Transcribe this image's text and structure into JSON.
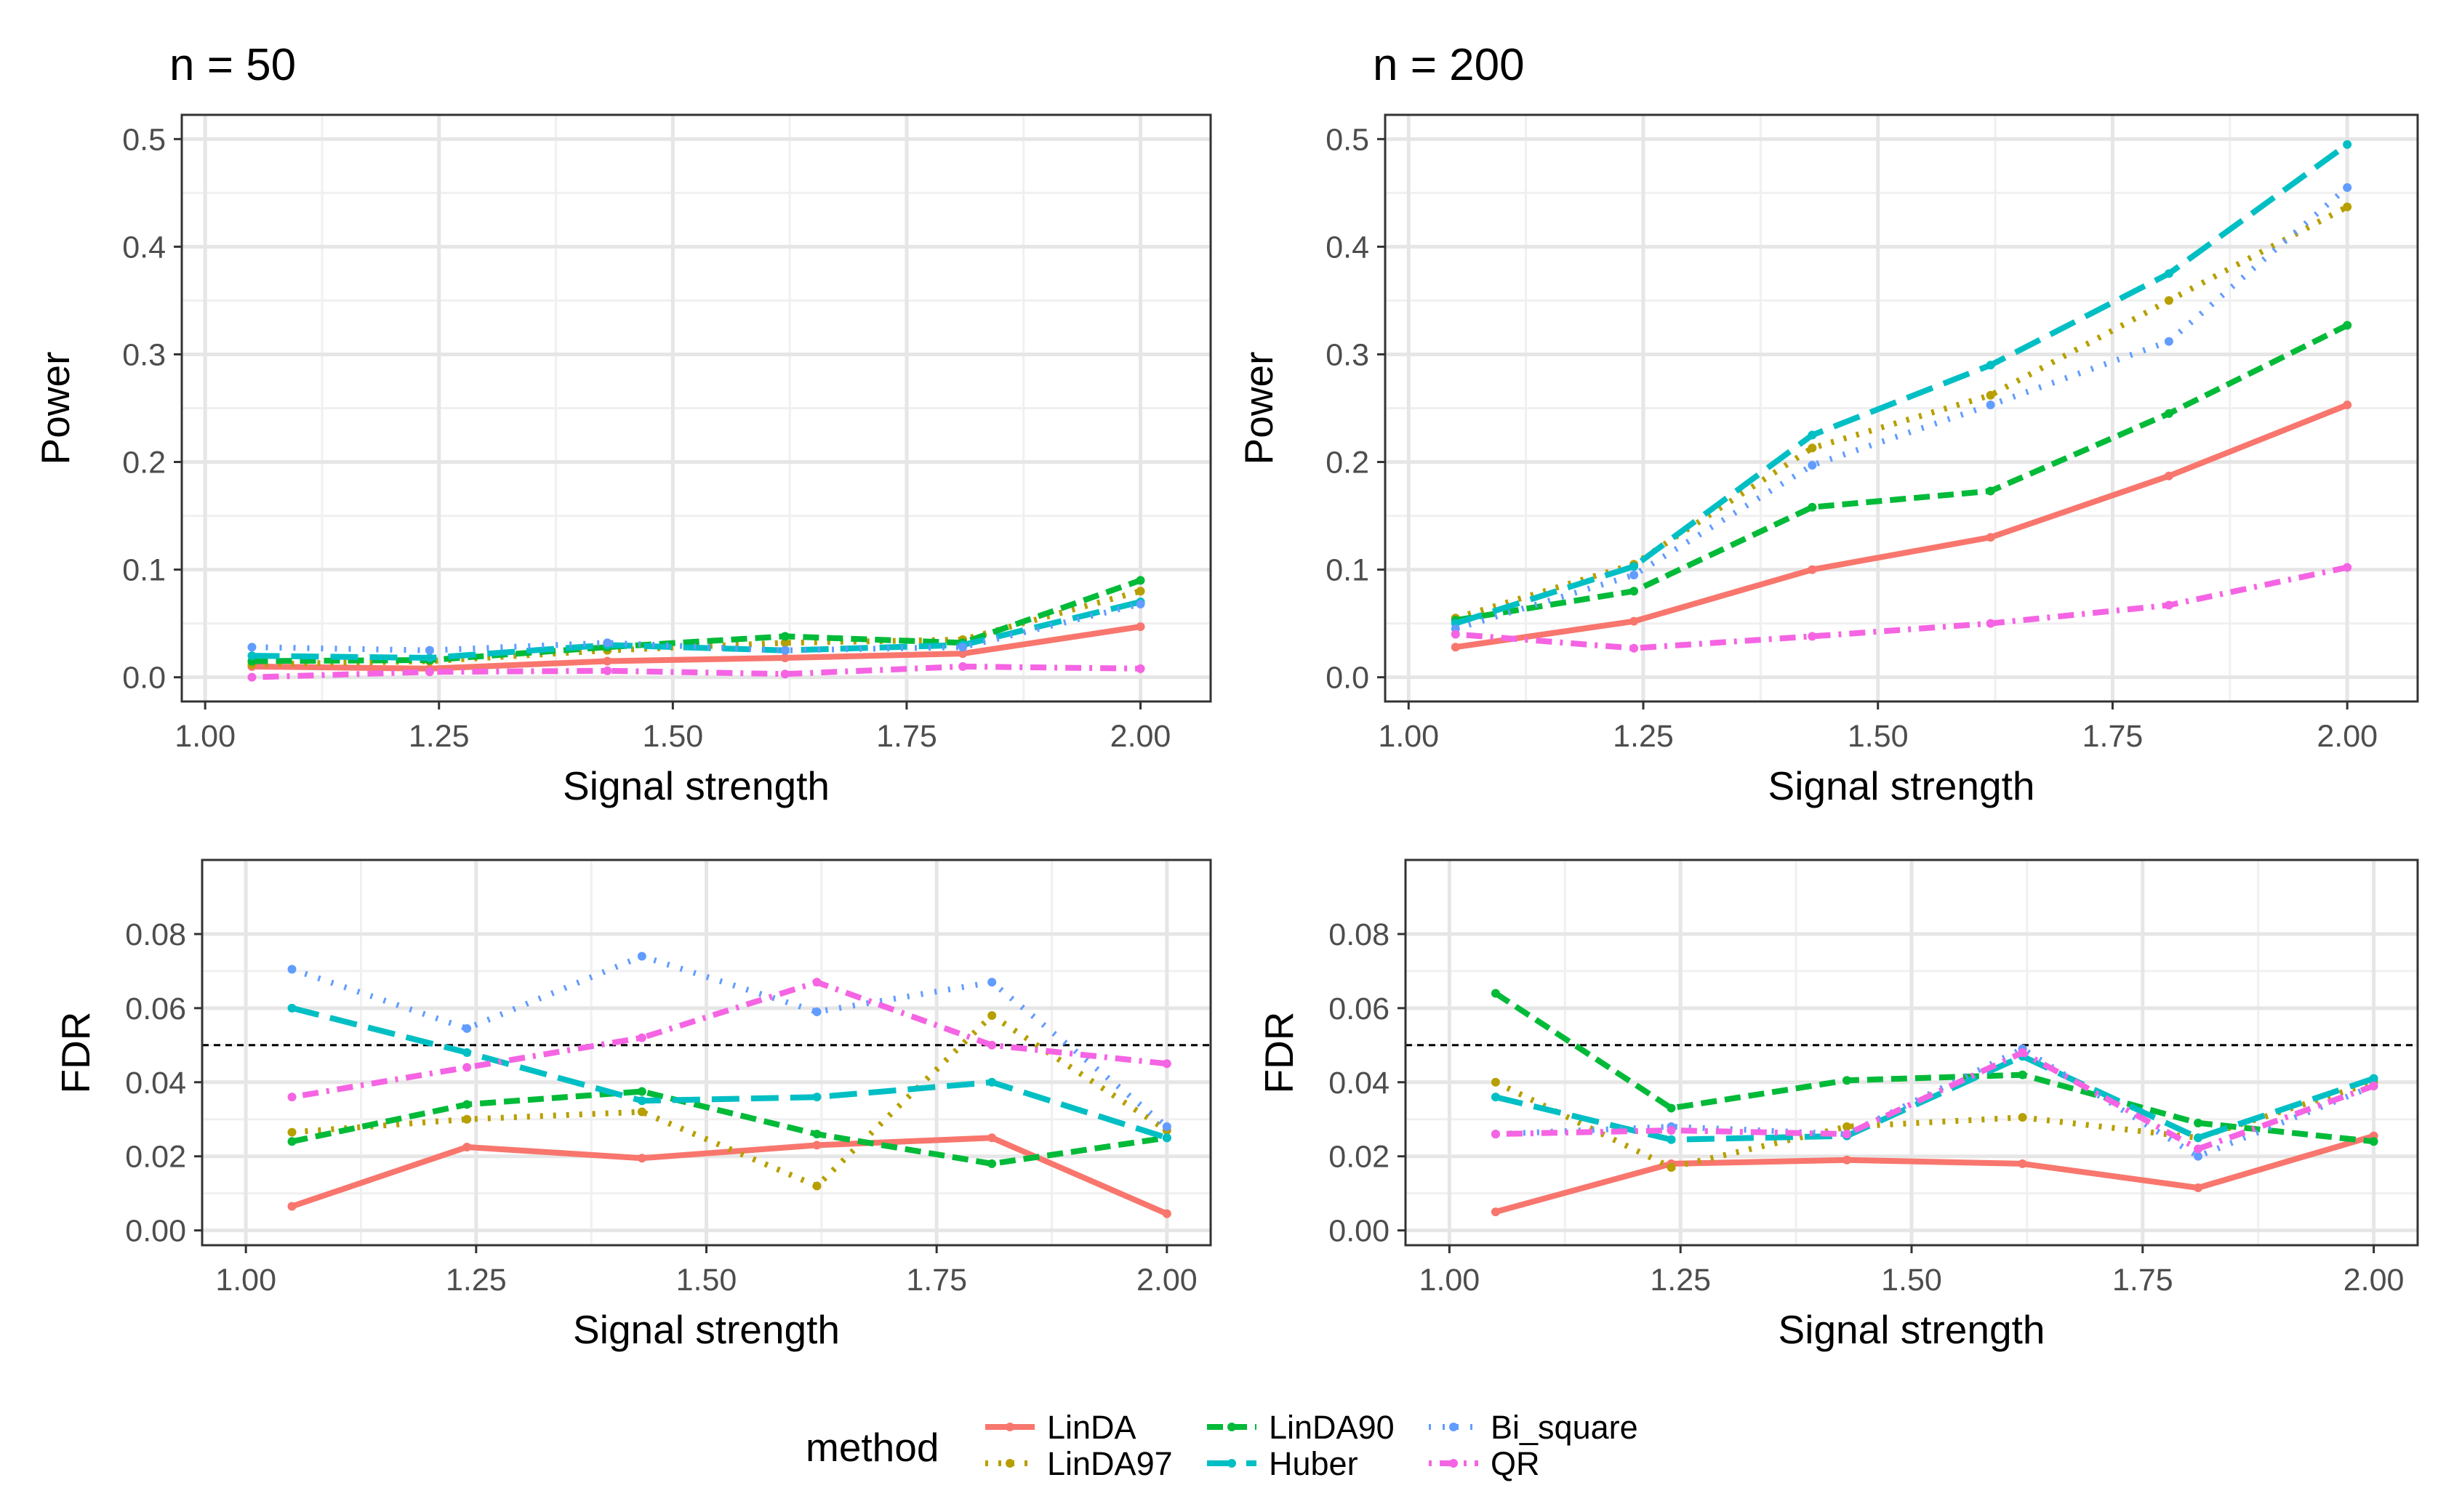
{
  "figure": {
    "legend": {
      "title": "method",
      "position": "bottom"
    },
    "series_style": [
      {
        "name": "LinDA",
        "color": "#F8766D",
        "dash": "solid"
      },
      {
        "name": "LinDA97",
        "color": "#B79F00",
        "dash": "dotted"
      },
      {
        "name": "LinDA90",
        "color": "#00BA38",
        "dash": "dashed"
      },
      {
        "name": "Huber",
        "color": "#00BFC4",
        "dash": "longdash"
      },
      {
        "name": "Bi_square",
        "color": "#619CFF",
        "dash": "dotdense"
      },
      {
        "name": "QR",
        "color": "#F564E3",
        "dash": "dotdash"
      }
    ]
  },
  "chart_data": [
    {
      "id": "power_n50",
      "type": "line",
      "title": "n = 50",
      "xlabel": "Signal strength",
      "ylabel": "Power",
      "xlim": [
        0.975,
        2.075
      ],
      "ylim": [
        -0.0225,
        0.5225
      ],
      "xticks": [
        1.0,
        1.25,
        1.5,
        1.75,
        2.0
      ],
      "xtick_labels": [
        "1.00",
        "1.25",
        "1.50",
        "1.75",
        "2.00"
      ],
      "yticks": [
        0.0,
        0.1,
        0.2,
        0.3,
        0.4,
        0.5
      ],
      "ytick_labels": [
        "0.0",
        "0.1",
        "0.2",
        "0.3",
        "0.4",
        "0.5"
      ],
      "hline": null,
      "x": [
        1.05,
        1.24,
        1.43,
        1.62,
        1.81,
        2.0
      ],
      "series": [
        {
          "name": "LinDA",
          "values": [
            0.01,
            0.008,
            0.015,
            0.018,
            0.022,
            0.047
          ]
        },
        {
          "name": "LinDA97",
          "values": [
            0.012,
            0.015,
            0.025,
            0.032,
            0.035,
            0.08
          ]
        },
        {
          "name": "LinDA90",
          "values": [
            0.015,
            0.016,
            0.028,
            0.038,
            0.032,
            0.09
          ]
        },
        {
          "name": "Huber",
          "values": [
            0.02,
            0.018,
            0.03,
            0.025,
            0.03,
            0.07
          ]
        },
        {
          "name": "Bi_square",
          "values": [
            0.028,
            0.025,
            0.032,
            0.025,
            0.028,
            0.068
          ]
        },
        {
          "name": "QR",
          "values": [
            0.0,
            0.005,
            0.006,
            0.003,
            0.01,
            0.008
          ]
        }
      ]
    },
    {
      "id": "power_n200",
      "type": "line",
      "title": "n = 200",
      "xlabel": "Signal strength",
      "ylabel": "Power",
      "xlim": [
        0.975,
        2.075
      ],
      "ylim": [
        -0.0225,
        0.5225
      ],
      "xticks": [
        1.0,
        1.25,
        1.5,
        1.75,
        2.0
      ],
      "xtick_labels": [
        "1.00",
        "1.25",
        "1.50",
        "1.75",
        "2.00"
      ],
      "yticks": [
        0.0,
        0.1,
        0.2,
        0.3,
        0.4,
        0.5
      ],
      "ytick_labels": [
        "0.0",
        "0.1",
        "0.2",
        "0.3",
        "0.4",
        "0.5"
      ],
      "hline": null,
      "x": [
        1.05,
        1.24,
        1.43,
        1.62,
        1.81,
        2.0
      ],
      "series": [
        {
          "name": "LinDA",
          "values": [
            0.028,
            0.052,
            0.1,
            0.13,
            0.187,
            0.253
          ]
        },
        {
          "name": "LinDA97",
          "values": [
            0.055,
            0.105,
            0.213,
            0.262,
            0.35,
            0.437
          ]
        },
        {
          "name": "LinDA90",
          "values": [
            0.053,
            0.08,
            0.158,
            0.173,
            0.245,
            0.327
          ]
        },
        {
          "name": "Huber",
          "values": [
            0.05,
            0.103,
            0.225,
            0.29,
            0.375,
            0.495
          ]
        },
        {
          "name": "Bi_square",
          "values": [
            0.045,
            0.095,
            0.197,
            0.253,
            0.312,
            0.455
          ]
        },
        {
          "name": "QR",
          "values": [
            0.04,
            0.027,
            0.038,
            0.05,
            0.067,
            0.102
          ]
        }
      ]
    },
    {
      "id": "fdr_n50",
      "type": "line",
      "title": "",
      "xlabel": "Signal strength",
      "ylabel": "FDR",
      "xlim": [
        0.9525,
        2.0475
      ],
      "ylim": [
        -0.004,
        0.1
      ],
      "xticks": [
        1.0,
        1.25,
        1.5,
        1.75,
        2.0
      ],
      "xtick_labels": [
        "1.00",
        "1.25",
        "1.50",
        "1.75",
        "2.00"
      ],
      "yticks": [
        0.0,
        0.02,
        0.04,
        0.06,
        0.08
      ],
      "ytick_labels": [
        "0.00",
        "0.02",
        "0.04",
        "0.06",
        "0.08"
      ],
      "hline": 0.05,
      "x": [
        1.05,
        1.24,
        1.43,
        1.62,
        1.81,
        2.0
      ],
      "series": [
        {
          "name": "LinDA",
          "values": [
            0.0065,
            0.0225,
            0.0195,
            0.023,
            0.025,
            0.0045
          ]
        },
        {
          "name": "LinDA97",
          "values": [
            0.0265,
            0.03,
            0.032,
            0.012,
            0.058,
            0.027
          ]
        },
        {
          "name": "LinDA90",
          "values": [
            0.024,
            0.034,
            0.0375,
            0.026,
            0.018,
            0.025
          ]
        },
        {
          "name": "Huber",
          "values": [
            0.06,
            0.048,
            0.035,
            0.036,
            0.04,
            0.025
          ]
        },
        {
          "name": "Bi_square",
          "values": [
            0.0705,
            0.0545,
            0.074,
            0.059,
            0.067,
            0.028
          ]
        },
        {
          "name": "QR",
          "values": [
            0.036,
            0.044,
            0.052,
            0.067,
            0.05,
            0.045
          ]
        }
      ]
    },
    {
      "id": "fdr_n200",
      "type": "line",
      "title": "",
      "xlabel": "Signal strength",
      "ylabel": "FDR",
      "xlim": [
        0.9525,
        2.0475
      ],
      "ylim": [
        -0.004,
        0.1
      ],
      "xticks": [
        1.0,
        1.25,
        1.5,
        1.75,
        2.0
      ],
      "xtick_labels": [
        "1.00",
        "1.25",
        "1.50",
        "1.75",
        "2.00"
      ],
      "yticks": [
        0.0,
        0.02,
        0.04,
        0.06,
        0.08
      ],
      "ytick_labels": [
        "0.00",
        "0.02",
        "0.04",
        "0.06",
        "0.08"
      ],
      "hline": 0.05,
      "x": [
        1.05,
        1.24,
        1.43,
        1.62,
        1.81,
        2.0
      ],
      "series": [
        {
          "name": "LinDA",
          "values": [
            0.005,
            0.018,
            0.019,
            0.018,
            0.0115,
            0.0255
          ]
        },
        {
          "name": "LinDA97",
          "values": [
            0.04,
            0.017,
            0.028,
            0.0305,
            0.025,
            0.04
          ]
        },
        {
          "name": "LinDA90",
          "values": [
            0.064,
            0.033,
            0.0405,
            0.042,
            0.029,
            0.024
          ]
        },
        {
          "name": "Huber",
          "values": [
            0.036,
            0.0245,
            0.0255,
            0.047,
            0.025,
            0.041
          ]
        },
        {
          "name": "Bi_square",
          "values": [
            0.026,
            0.028,
            0.026,
            0.049,
            0.02,
            0.039
          ]
        },
        {
          "name": "QR",
          "values": [
            0.026,
            0.027,
            0.026,
            0.048,
            0.022,
            0.039
          ]
        }
      ]
    }
  ]
}
